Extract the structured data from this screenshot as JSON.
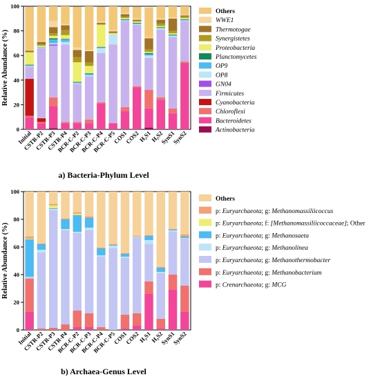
{
  "chart_data": [
    {
      "type": "bar",
      "stacked": true,
      "caption": "a) Bacteria-Phylum Level",
      "ylabel": "Relative Abundance (%)",
      "ylim": [
        0,
        100
      ],
      "yticks": [
        0,
        20,
        40,
        60,
        80,
        100
      ],
      "categories": [
        "Initial",
        "CSTR-P2",
        "CSTR-P3",
        "CSTR-P4",
        "BCR-C-P2",
        "BCR-C-P3",
        "BCR-C-P4",
        "BCR-C-P5",
        "COS1",
        "COS2",
        "H₂S1",
        "H₂S2",
        "SynS1",
        "SynS2"
      ],
      "series": [
        {
          "name": "Actinobacteria",
          "color": "#9b0d4e",
          "values": [
            0,
            0,
            1,
            0,
            0,
            0,
            0,
            0,
            0,
            0,
            1.5,
            0,
            0,
            0
          ]
        },
        {
          "name": "Bacteroidetes",
          "color": "#f2469a",
          "values": [
            10,
            5,
            18,
            5,
            5,
            5,
            21,
            5,
            15,
            34,
            15.5,
            24,
            13,
            54
          ]
        },
        {
          "name": "Chloroflexi",
          "color": "#f0716e",
          "values": [
            1,
            1,
            7,
            1,
            1,
            3,
            1,
            0,
            3,
            1,
            15,
            2,
            4,
            1
          ]
        },
        {
          "name": "Cyanobacteria",
          "color": "#c41414",
          "values": [
            30,
            3,
            0,
            0,
            0,
            0,
            0,
            0,
            0,
            0,
            0,
            0,
            0,
            0
          ]
        },
        {
          "name": "Actinobacteria (upper)",
          "color": "#9b0d4e",
          "values": [
            0,
            0,
            0,
            0,
            0,
            0,
            0,
            0,
            0,
            0,
            0,
            0,
            0,
            0
          ]
        },
        {
          "name": "Firmicutes",
          "color": "#c9b3ee",
          "values": [
            10,
            57,
            42,
            63,
            31,
            35,
            40,
            64,
            70,
            50,
            26,
            55,
            58,
            33
          ]
        },
        {
          "name": "GN04",
          "color": "#a34ee6",
          "values": [
            0,
            0,
            1,
            0,
            0,
            0,
            0,
            0,
            0,
            0,
            0,
            0,
            0,
            0
          ]
        },
        {
          "name": "OP8",
          "color": "#bde4f7",
          "values": [
            0.5,
            0.5,
            1,
            2,
            0.5,
            1,
            4,
            8,
            0.5,
            0.5,
            2,
            1,
            1,
            0.5
          ]
        },
        {
          "name": "OP9",
          "color": "#4dbbf2",
          "values": [
            0.5,
            0.3,
            3,
            2,
            0.5,
            1,
            0.5,
            0,
            0.5,
            0.5,
            1,
            0.5,
            0.5,
            0.5
          ]
        },
        {
          "name": "Planctomycetes",
          "color": "#138a5a",
          "values": [
            0.5,
            0.2,
            1,
            0.5,
            0.5,
            0.5,
            0.5,
            0,
            0.5,
            0.5,
            1,
            0.5,
            0.5,
            0.5
          ]
        },
        {
          "name": "Proteobacteria",
          "color": "#eded6e",
          "values": [
            10,
            1,
            2,
            3,
            16,
            6,
            18,
            1,
            1,
            1,
            1,
            1,
            1,
            1
          ]
        },
        {
          "name": "Synergistetes",
          "color": "#b09a1f",
          "values": [
            0.5,
            1,
            2,
            4,
            4,
            3,
            0.5,
            0.5,
            1,
            0.5,
            2,
            2,
            2,
            1
          ]
        },
        {
          "name": "Thermotogae",
          "color": "#a0722a",
          "values": [
            1,
            2,
            5,
            4,
            6,
            9,
            1,
            1,
            2,
            1,
            9,
            3,
            10,
            1
          ]
        },
        {
          "name": "WWE1",
          "color": "#f6d7a2",
          "values": [
            0.5,
            0.5,
            5,
            1,
            2,
            1,
            1,
            1,
            1,
            1,
            1,
            1,
            1,
            0.5
          ]
        },
        {
          "name": "Others",
          "color": "#f2c777",
          "values": [
            35,
            28.5,
            12,
            14.5,
            33,
            35.5,
            12,
            19.5,
            5,
            9.5,
            24,
            10,
            9,
            7
          ]
        }
      ],
      "legend": [
        "Others",
        "WWE1",
        "Thermotogae",
        "Synergistetes",
        "Proteobacteria",
        "Planctomycetes",
        "OP9",
        "OP8",
        "GN04",
        "Firmicutes",
        "Cyanobacteria",
        "Chloroflexi",
        "Bacteroidetes",
        "Actinobacteria"
      ],
      "legend_colors": {
        "Others": "#f2c777",
        "WWE1": "#f6d7a2",
        "Thermotogae": "#a0722a",
        "Synergistetes": "#b09a1f",
        "Proteobacteria": "#eded6e",
        "Planctomycetes": "#138a5a",
        "OP9": "#4dbbf2",
        "OP8": "#bde4f7",
        "GN04": "#a34ee6",
        "Firmicutes": "#c9b3ee",
        "Cyanobacteria": "#c41414",
        "Chloroflexi": "#f0716e",
        "Bacteroidetes": "#f2469a",
        "Actinobacteria": "#9b0d4e"
      },
      "legend_placement": "right"
    },
    {
      "type": "bar",
      "stacked": true,
      "caption": "b) Archaea-Genus Level",
      "ylabel": "Relative Abundance (%)",
      "ylim": [
        0,
        100
      ],
      "yticks": [
        0,
        20,
        40,
        60,
        80,
        100
      ],
      "categories": [
        "Initial",
        "CSTR-P2",
        "CSTR-P3",
        "CSTR-P4",
        "BCR-C-P2",
        "BCR-C-P3",
        "BCR-C-P4",
        "BCR-C-P5",
        "COS1",
        "COS2",
        "H₂S1",
        "H₂S2",
        "SynS1",
        "SynS2"
      ],
      "series": [
        {
          "name": "MCG",
          "color": "#f2469a",
          "values": [
            13,
            0,
            0,
            0,
            2,
            2,
            0,
            0,
            1,
            3,
            26,
            1,
            29,
            13
          ]
        },
        {
          "name": "Methanobacterium",
          "color": "#f0716e",
          "values": [
            24,
            1,
            1.5,
            4,
            12,
            10,
            2,
            0,
            10,
            9,
            9,
            7,
            11,
            19
          ]
        },
        {
          "name": "Methanothermobacter",
          "color": "#c3c6f3",
          "values": [
            1,
            55,
            85,
            68,
            56,
            60,
            51,
            59,
            41,
            55,
            27,
            33,
            31,
            34
          ]
        },
        {
          "name": "Methanolinea",
          "color": "#bde4f7",
          "values": [
            0.5,
            2,
            1,
            1,
            1,
            2,
            1,
            2,
            1,
            0.5,
            3,
            1,
            1,
            0.5
          ]
        },
        {
          "name": "Methanosaeta",
          "color": "#4dbbf2",
          "values": [
            27,
            4,
            0.5,
            7,
            12,
            7,
            5,
            0.5,
            2,
            0,
            3,
            3,
            0.5,
            1
          ]
        },
        {
          "name": "[Methanomassiliicoccaceae]; Other",
          "color": "#eded6e",
          "values": [
            0.5,
            0,
            2,
            0,
            1,
            0,
            0,
            0,
            0,
            0,
            0,
            0,
            0,
            0
          ]
        },
        {
          "name": "Methanomassiliicoccus",
          "color": "#f5a077",
          "values": [
            1.5,
            0.5,
            1,
            0.5,
            1,
            1,
            0.5,
            0.5,
            0.5,
            0.5,
            0.5,
            0.5,
            0.5,
            1.5
          ]
        },
        {
          "name": "Others",
          "color": "#f6d29a",
          "values": [
            32.5,
            37.5,
            9,
            19.5,
            15,
            18,
            40.5,
            38,
            44.5,
            32,
            31.5,
            54.5,
            27,
            31
          ]
        }
      ],
      "legend": [
        {
          "plain": "Others",
          "rank1": "",
          "phylum": "",
          "rank2": "",
          "genus": ""
        },
        {
          "plain": "",
          "rank1": "p: ",
          "phylum": "Euryarchaeota",
          "rank2": "; g: ",
          "genus": "Methanomassiliicoccus",
          "tail": ""
        },
        {
          "plain": "",
          "rank1": "p: ",
          "phylum": "Euryarchaeota",
          "rank2": "; f: ",
          "genus": "[Methanomassiliicoccaceae]",
          "tail": "; Other"
        },
        {
          "plain": "",
          "rank1": "p: ",
          "phylum": "Euryarchaeota",
          "rank2": "; g: ",
          "genus": "Methanosaeta",
          "tail": ""
        },
        {
          "plain": "",
          "rank1": "p: ",
          "phylum": "Euryarchaeota",
          "rank2": "; g: ",
          "genus": "Methanolinea",
          "tail": ""
        },
        {
          "plain": "",
          "rank1": "p: ",
          "phylum": "Euryarchaeota",
          "rank2": "; g: ",
          "genus": "Methanothermobacter",
          "tail": ""
        },
        {
          "plain": "",
          "rank1": "p: ",
          "phylum": "Euryarchaeota",
          "rank2": "; g: ",
          "genus": "Methanobacterium",
          "tail": ""
        },
        {
          "plain": "",
          "rank1": "p: ",
          "phylum": "Crenarchaeota",
          "rank2": "; g: ",
          "genus": "MCG",
          "tail": ""
        }
      ],
      "legend_colors": [
        "#f6d29a",
        "#f5a077",
        "#eded6e",
        "#4dbbf2",
        "#bde4f7",
        "#c3c6f3",
        "#f0716e",
        "#f2469a"
      ],
      "legend_placement": "right"
    }
  ]
}
